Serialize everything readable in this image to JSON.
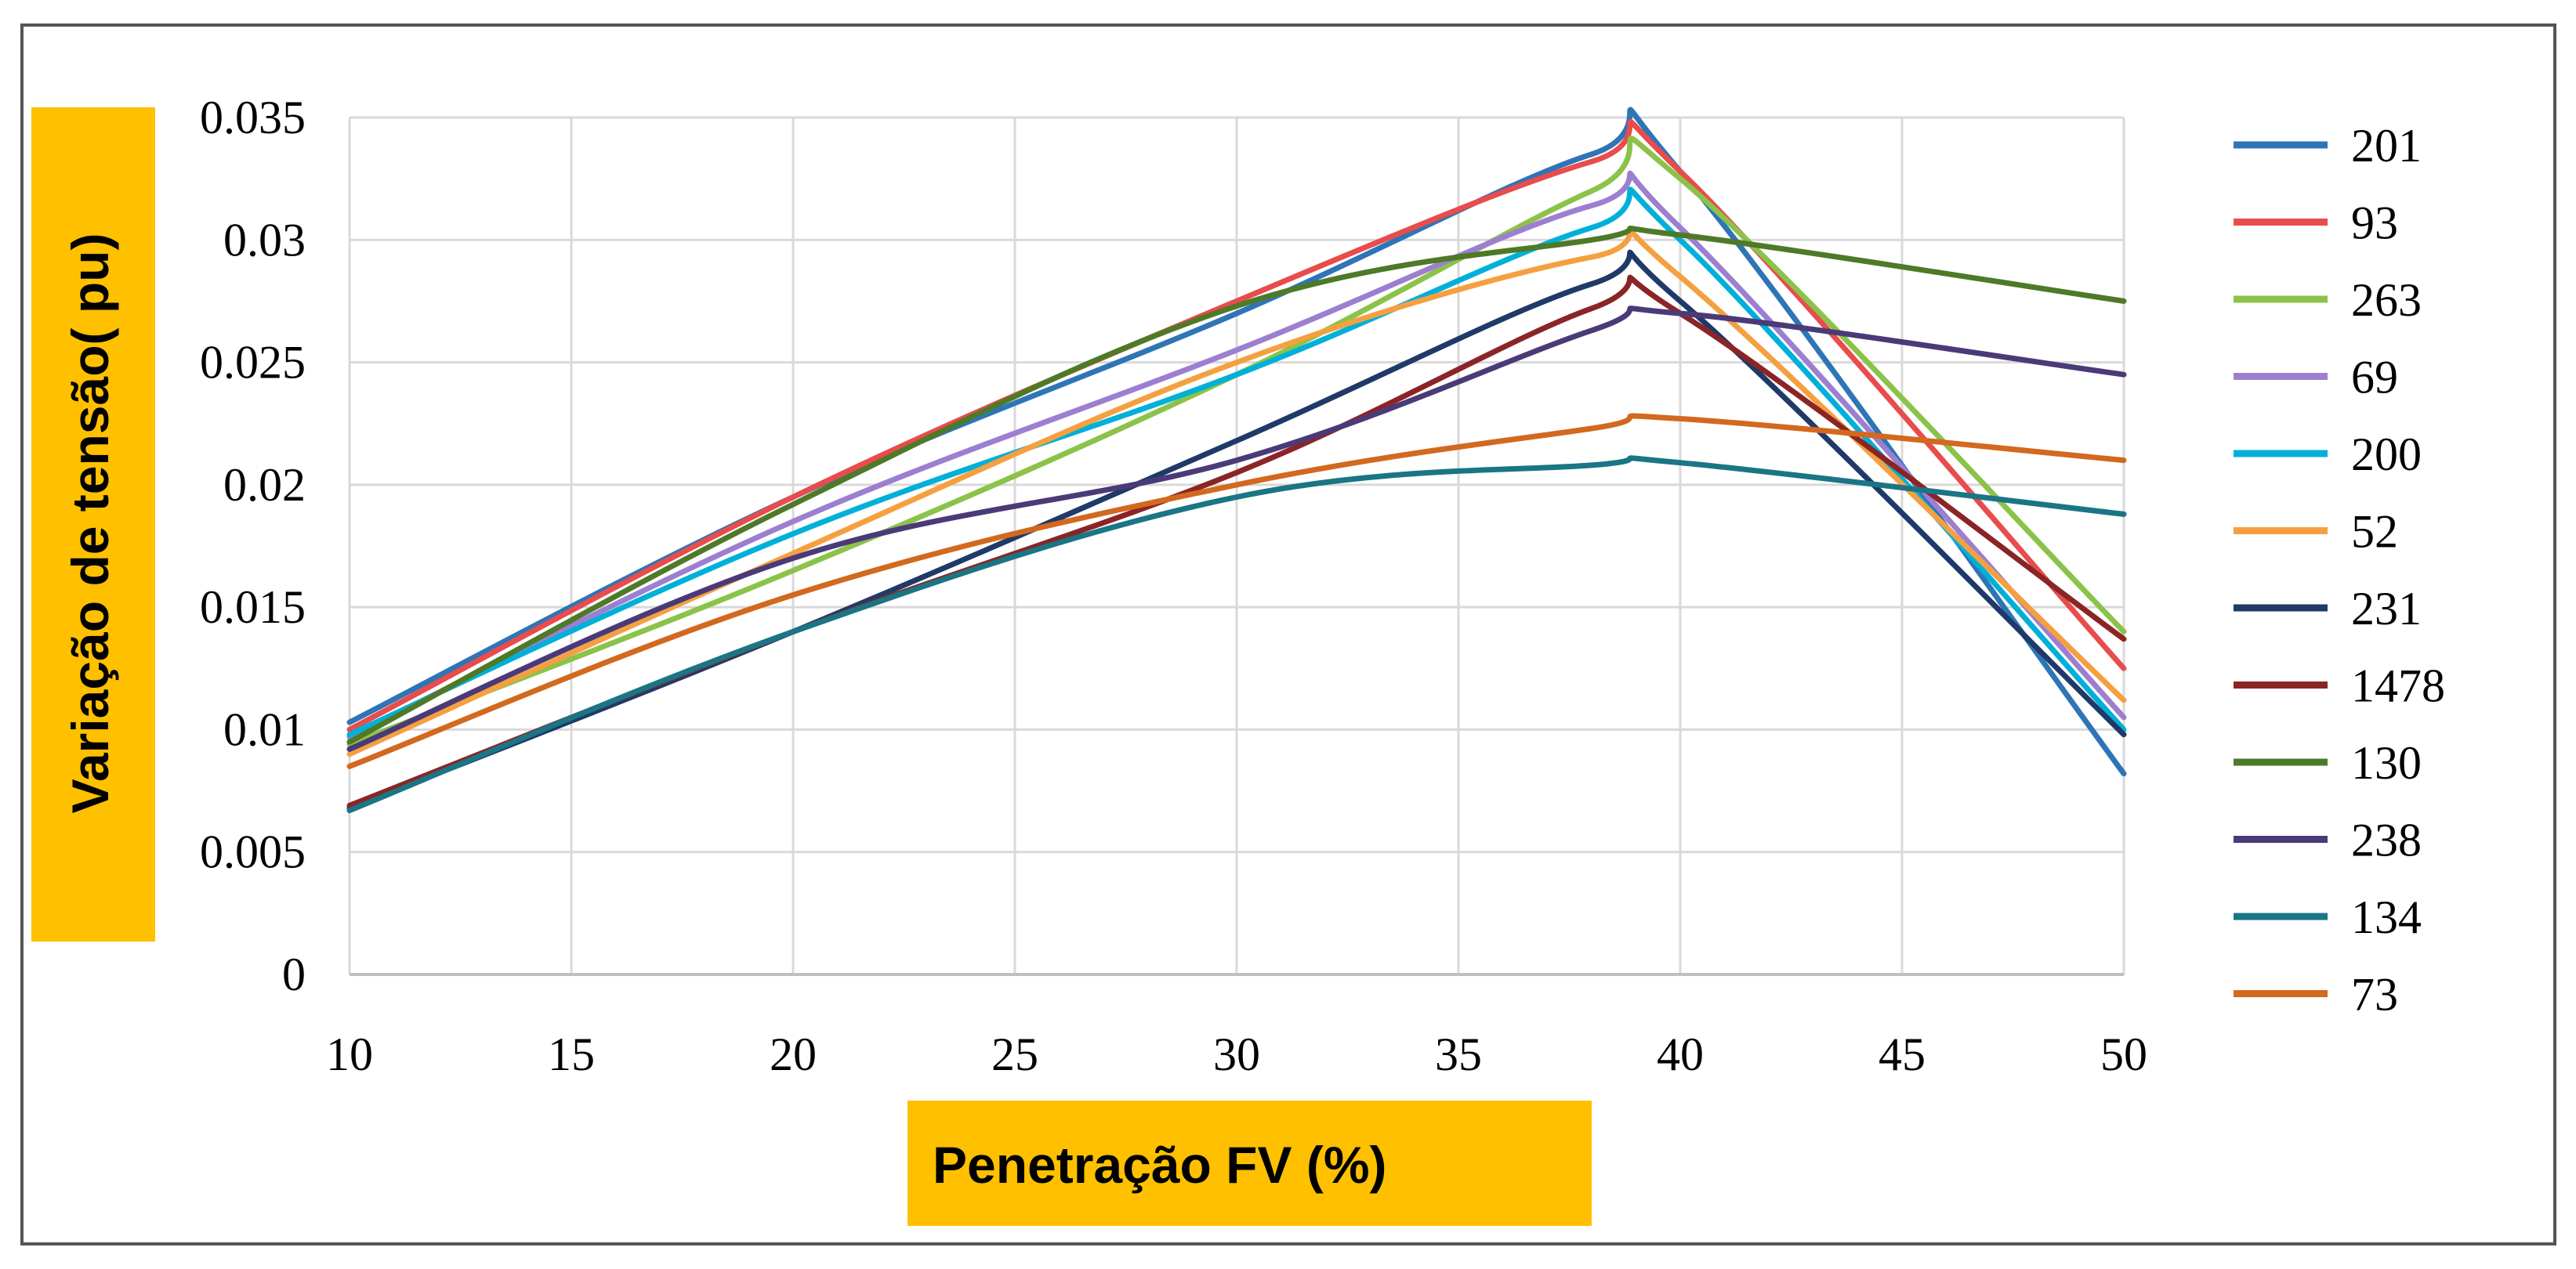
{
  "chart_data": {
    "type": "line",
    "xlabel": "Penetração FV (%)",
    "ylabel": "Variação de tensão( pu)",
    "label_highlight_color": "#FFC000",
    "xlim": [
      10,
      50
    ],
    "ylim": [
      0,
      0.035
    ],
    "x_ticks": [
      "10",
      "15",
      "20",
      "25",
      "30",
      "35",
      "40",
      "45",
      "50"
    ],
    "y_ticks": [
      "0",
      "0.005",
      "0.01",
      "0.015",
      "0.02",
      "0.025",
      "0.03",
      "0.035"
    ],
    "grid": true,
    "legend_position": "right",
    "x": [
      10,
      20,
      30,
      38,
      40,
      50
    ],
    "series": [
      {
        "name": "201",
        "color": "#2E75B6",
        "values": [
          0.0103,
          0.0195,
          0.027,
          0.0335,
          0.0328,
          0.0082
        ]
      },
      {
        "name": "93",
        "color": "#E84C4C",
        "values": [
          0.01,
          0.0195,
          0.0275,
          0.0332,
          0.0328,
          0.0125
        ]
      },
      {
        "name": "263",
        "color": "#8BC34A",
        "values": [
          0.0094,
          0.0165,
          0.0245,
          0.032,
          0.0325,
          0.014
        ]
      },
      {
        "name": "69",
        "color": "#9C7FD0",
        "values": [
          0.0097,
          0.0185,
          0.0255,
          0.0314,
          0.0305,
          0.0105
        ]
      },
      {
        "name": "200",
        "color": "#00B0D8",
        "values": [
          0.0098,
          0.018,
          0.0245,
          0.0305,
          0.03,
          0.01
        ]
      },
      {
        "name": "52",
        "color": "#F5A040",
        "values": [
          0.009,
          0.0172,
          0.025,
          0.0293,
          0.0285,
          0.0112
        ]
      },
      {
        "name": "231",
        "color": "#1F3A68",
        "values": [
          0.0068,
          0.014,
          0.0218,
          0.0282,
          0.0275,
          0.0098
        ]
      },
      {
        "name": "1478",
        "color": "#8B2525",
        "values": [
          0.0069,
          0.014,
          0.0205,
          0.0272,
          0.027,
          0.0137
        ]
      },
      {
        "name": "130",
        "color": "#4E7A28",
        "values": [
          0.0095,
          0.0192,
          0.0273,
          0.03,
          0.0302,
          0.0275
        ]
      },
      {
        "name": "238",
        "color": "#4B3A78",
        "values": [
          0.0092,
          0.017,
          0.021,
          0.0263,
          0.027,
          0.0245
        ]
      },
      {
        "name": "134",
        "color": "#1A7585",
        "values": [
          0.0067,
          0.014,
          0.0195,
          0.0208,
          0.0209,
          0.0188
        ]
      },
      {
        "name": "73",
        "color": "#D2691E",
        "values": [
          0.0085,
          0.0155,
          0.02,
          0.0223,
          0.0227,
          0.021
        ]
      }
    ]
  }
}
